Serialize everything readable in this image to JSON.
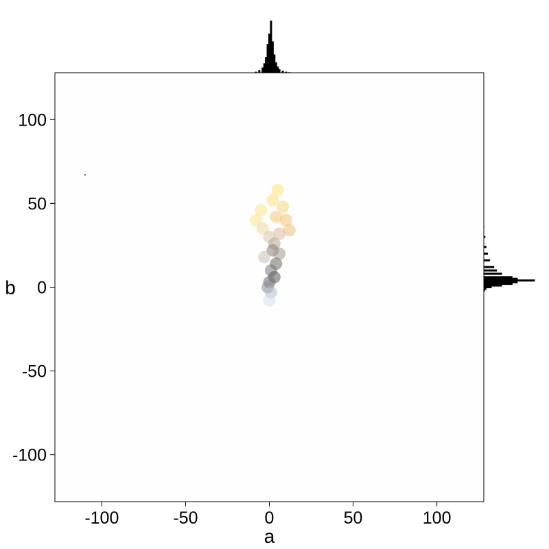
{
  "chart_data": {
    "type": "scatter",
    "title": "",
    "xlabel": "a",
    "ylabel": "b",
    "xlim": [
      -128,
      128
    ],
    "ylim": [
      -128,
      128
    ],
    "x_ticks": [
      -100,
      -50,
      0,
      50,
      100
    ],
    "y_ticks": [
      100,
      50,
      0,
      -50,
      -100
    ],
    "x_tick_labels": [
      "-100",
      "-50",
      "0",
      "50",
      "100"
    ],
    "y_tick_labels": [
      "100",
      "50",
      "0",
      "-50",
      "-100"
    ],
    "grid": false,
    "legend": "none",
    "marginal_histograms": [
      "top",
      "right"
    ],
    "series": [
      {
        "points": [
          {
            "a": 5,
            "b": 58,
            "color": "#fde27a"
          },
          {
            "a": 2,
            "b": 52,
            "color": "#fbe07c"
          },
          {
            "a": -5,
            "b": 46,
            "color": "#fbe58a"
          },
          {
            "a": 8,
            "b": 48,
            "color": "#f7d778"
          },
          {
            "a": -8,
            "b": 40,
            "color": "#f9e28c"
          },
          {
            "a": 4,
            "b": 42,
            "color": "#f3c77e"
          },
          {
            "a": 10,
            "b": 40,
            "color": "#f5c36c"
          },
          {
            "a": 12,
            "b": 34,
            "color": "#efc07a"
          },
          {
            "a": -4,
            "b": 35,
            "color": "#eed7a4"
          },
          {
            "a": 6,
            "b": 32,
            "color": "#ddb79a"
          },
          {
            "a": 0,
            "b": 30,
            "color": "#d7c6a8"
          },
          {
            "a": 3,
            "b": 26,
            "color": "#b8a898"
          },
          {
            "a": 2,
            "b": 22,
            "color": "#8a7f78"
          },
          {
            "a": 6,
            "b": 20,
            "color": "#a6988c"
          },
          {
            "a": -3,
            "b": 18,
            "color": "#c8c0b8"
          },
          {
            "a": 4,
            "b": 14,
            "color": "#6f6a6a"
          },
          {
            "a": 1,
            "b": 10,
            "color": "#7a7676"
          },
          {
            "a": 3,
            "b": 6,
            "color": "#5a5858"
          },
          {
            "a": 0,
            "b": 3,
            "color": "#6b6a70"
          },
          {
            "a": -1,
            "b": 0,
            "color": "#8a8c96"
          },
          {
            "a": 1,
            "b": -3,
            "color": "#b5bccc"
          },
          {
            "a": 0,
            "b": -8,
            "color": "#d7deea"
          },
          {
            "a": -110,
            "b": 67,
            "color": "#333333"
          }
        ]
      }
    ],
    "histogram_a": {
      "bins": [
        -8,
        -6,
        -4,
        -3,
        -2,
        -1,
        0,
        1,
        2,
        3,
        4,
        5,
        6,
        8,
        10,
        12
      ],
      "counts": [
        0.02,
        0.05,
        0.1,
        0.18,
        0.3,
        0.55,
        0.75,
        1.0,
        0.6,
        0.35,
        0.2,
        0.12,
        0.07,
        0.04,
        0.02,
        0.01
      ]
    },
    "histogram_b": {
      "bins": [
        36,
        30,
        24,
        20,
        16,
        12,
        10,
        8,
        6,
        5,
        4,
        3,
        2,
        1,
        0,
        -1,
        -2
      ],
      "counts": [
        0.01,
        0.03,
        0.05,
        0.08,
        0.12,
        0.2,
        0.25,
        0.35,
        0.55,
        0.65,
        0.98,
        0.65,
        0.55,
        0.35,
        0.15,
        0.05,
        0.02
      ]
    }
  }
}
